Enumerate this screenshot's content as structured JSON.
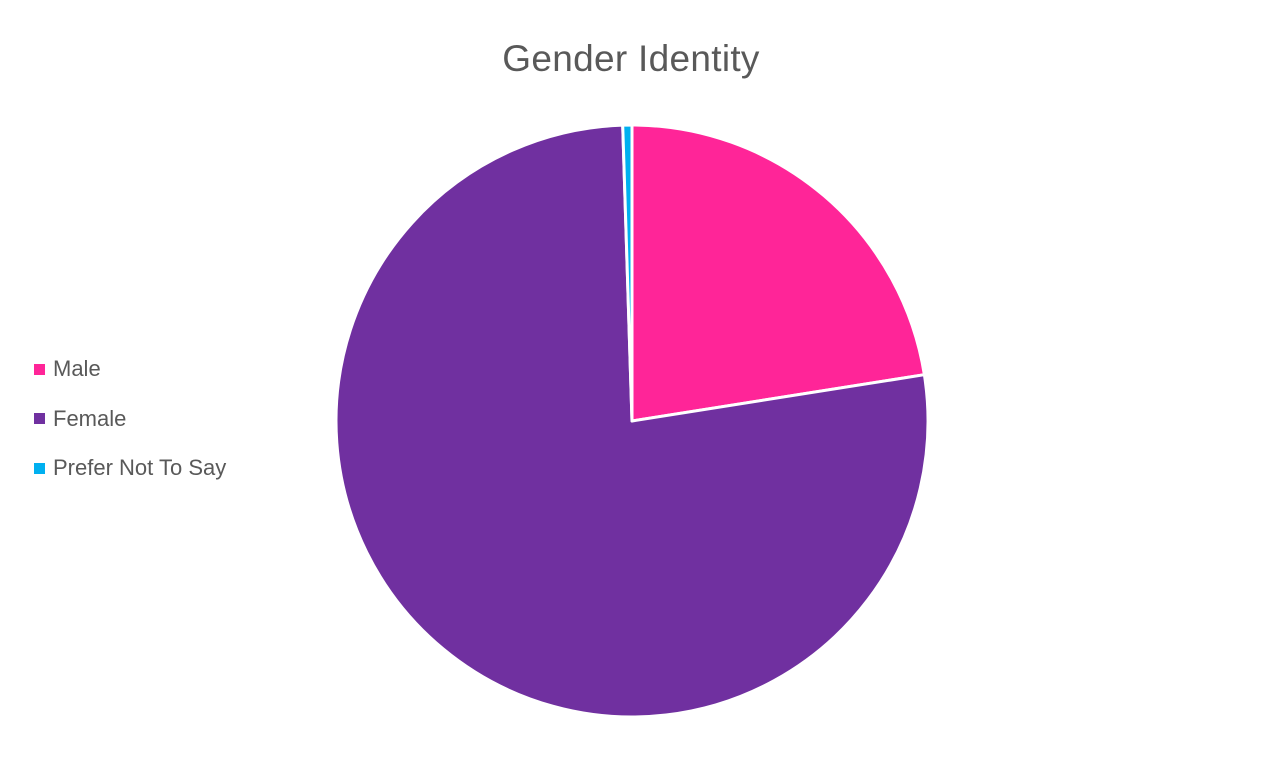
{
  "chart_data": {
    "type": "pie",
    "title": "Gender Identity",
    "categories": [
      "Male",
      "Female",
      "Prefer Not To Say"
    ],
    "values": [
      22.5,
      77,
      0.5
    ],
    "colors": [
      "#FF2598",
      "#7030A0",
      "#00B0F0"
    ],
    "legend_position": "left",
    "start_angle": "top",
    "direction": "clockwise"
  }
}
